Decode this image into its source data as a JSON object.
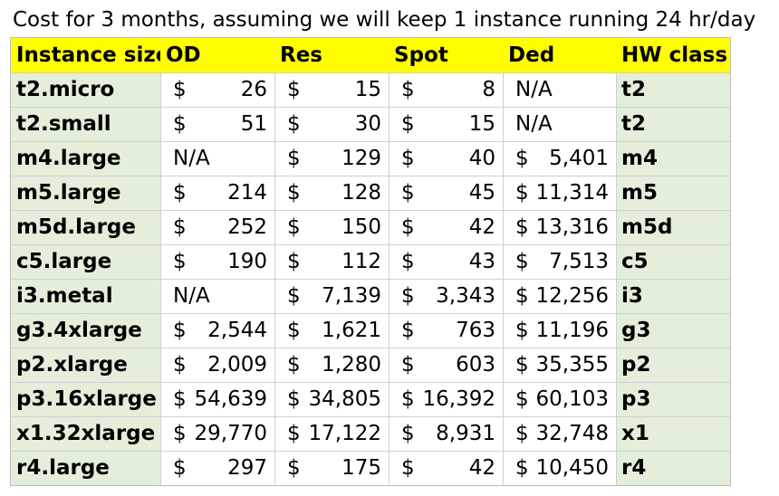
{
  "title": "Cost for 3 months, assuming we will keep 1 instance running 24 hr/day",
  "headers": {
    "name": "Instance size",
    "od": "OD",
    "res": "Res",
    "spot": "Spot",
    "ded": "Ded",
    "hw": "HW class"
  },
  "currency_symbol": "$",
  "rows": [
    {
      "name": "t2.micro",
      "od": "26",
      "res": "15",
      "spot": "8",
      "ded": "N/A",
      "hw": "t2"
    },
    {
      "name": "t2.small",
      "od": "51",
      "res": "30",
      "spot": "15",
      "ded": "N/A",
      "hw": "t2"
    },
    {
      "name": "m4.large",
      "od": "N/A",
      "res": "129",
      "spot": "40",
      "ded": "5,401",
      "hw": "m4"
    },
    {
      "name": "m5.large",
      "od": "214",
      "res": "128",
      "spot": "45",
      "ded": "11,314",
      "hw": "m5"
    },
    {
      "name": "m5d.large",
      "od": "252",
      "res": "150",
      "spot": "42",
      "ded": "13,316",
      "hw": "m5d"
    },
    {
      "name": "c5.large",
      "od": "190",
      "res": "112",
      "spot": "43",
      "ded": "7,513",
      "hw": "c5"
    },
    {
      "name": "i3.metal",
      "od": "N/A",
      "res": "7,139",
      "spot": "3,343",
      "ded": "12,256",
      "hw": "i3"
    },
    {
      "name": "g3.4xlarge",
      "od": "2,544",
      "res": "1,621",
      "spot": "763",
      "ded": "11,196",
      "hw": "g3"
    },
    {
      "name": "p2.xlarge",
      "od": "2,009",
      "res": "1,280",
      "spot": "603",
      "ded": "35,355",
      "hw": "p2"
    },
    {
      "name": "p3.16xlarge",
      "od": "54,639",
      "res": "34,805",
      "spot": "16,392",
      "ded": "60,103",
      "hw": "p3"
    },
    {
      "name": "x1.32xlarge",
      "od": "29,770",
      "res": "17,122",
      "spot": "8,931",
      "ded": "32,748",
      "hw": "x1"
    },
    {
      "name": "r4.large",
      "od": "297",
      "res": "175",
      "spot": "42",
      "ded": "10,450",
      "hw": "r4"
    }
  ],
  "colors": {
    "header": "#ffff00",
    "label_fill": "#e3efda"
  }
}
